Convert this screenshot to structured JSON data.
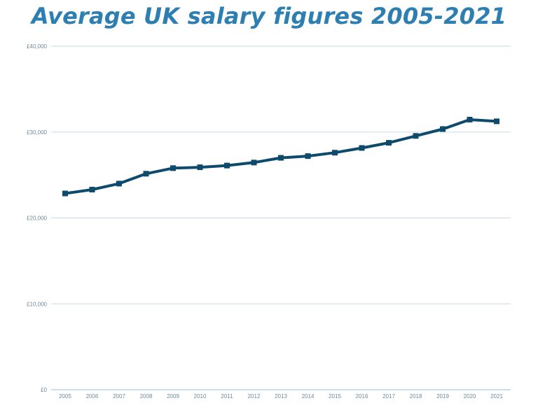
{
  "colors": {
    "title": "#2e7fb1",
    "line": "#0d4a6b",
    "grid": "#c9dbe6",
    "tick_text": "#6e8a9c"
  },
  "chart_data": {
    "type": "line",
    "title": "Average UK salary figures 2005-2021",
    "xlabel": "",
    "ylabel": "",
    "x": [
      "2005",
      "2006",
      "2007",
      "2008",
      "2009",
      "2010",
      "2011",
      "2012",
      "2013",
      "2014",
      "2015",
      "2016",
      "2017",
      "2018",
      "2019",
      "2020",
      "2021"
    ],
    "series": [
      {
        "values": [
          22850,
          23300,
          24000,
          25150,
          25800,
          25900,
          26100,
          26450,
          27000,
          27200,
          27600,
          28150,
          28750,
          29550,
          30350,
          31450,
          31250
        ]
      }
    ],
    "ylim": [
      0,
      40000
    ],
    "yticks": [
      0,
      10000,
      20000,
      30000,
      40000
    ],
    "ytick_labels": [
      "£0",
      "£10,000",
      "£20,000",
      "£30,000",
      "£40,000"
    ],
    "grid": true,
    "legend": "none",
    "markers": "square"
  }
}
